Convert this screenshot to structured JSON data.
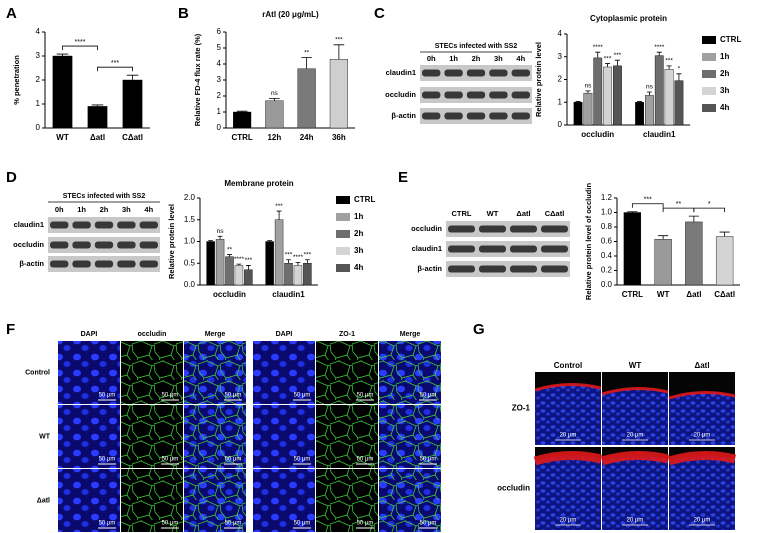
{
  "panel_labels": [
    "A",
    "B",
    "C",
    "D",
    "E",
    "F",
    "G"
  ],
  "chart_data": [
    {
      "type": "bar",
      "ylabel": "% penetration",
      "categories": [
        "WT",
        "Δatl",
        "CΔatl"
      ],
      "values": [
        3.0,
        0.9,
        2.0
      ],
      "errors": [
        0.08,
        0.06,
        0.2
      ],
      "color": "#000000",
      "ylim": [
        0,
        4
      ],
      "yticks": [
        0,
        1,
        2,
        3,
        4
      ],
      "comparisons": [
        {
          "between": [
            "WT",
            "Δatl"
          ],
          "label": "****"
        },
        {
          "between": [
            "Δatl",
            "CΔatl"
          ],
          "label": "***"
        }
      ]
    },
    {
      "type": "bar",
      "title": "rAtl (20 μg/mL)",
      "ylabel": "Relative FD-4 flux rate (%)",
      "categories": [
        "CTRL",
        "12h",
        "24h",
        "36h"
      ],
      "values": [
        1.0,
        1.7,
        3.7,
        4.3
      ],
      "errors": [
        0.05,
        0.15,
        0.7,
        0.9
      ],
      "colors": [
        "#000000",
        "#9a9a9a",
        "#7a7a7a",
        "#cfcfcf"
      ],
      "annotations": [
        null,
        "ns",
        "**",
        "***"
      ],
      "ylim": [
        0,
        6
      ],
      "yticks": [
        0,
        1,
        2,
        3,
        4,
        5,
        6
      ]
    },
    {
      "type": "grouped_bar",
      "title": "Cytoplasmic protein",
      "ylabel": "Relative protein level",
      "categories": [
        "occludin",
        "claudin1"
      ],
      "ylim": [
        0,
        4
      ],
      "yticks": [
        0,
        1,
        2,
        3,
        4
      ],
      "series": [
        {
          "name": "CTRL",
          "color": "#000000",
          "values": [
            1.0,
            1.0
          ],
          "errors": [
            0.03,
            0.03
          ],
          "annotations": [
            null,
            null
          ]
        },
        {
          "name": "1h",
          "color": "#a0a0a0",
          "values": [
            1.4,
            1.3
          ],
          "errors": [
            0.1,
            0.15
          ],
          "annotations": [
            "ns",
            "ns"
          ]
        },
        {
          "name": "2h",
          "color": "#6e6e6e",
          "values": [
            2.95,
            3.05
          ],
          "errors": [
            0.25,
            0.15
          ],
          "annotations": [
            "****",
            "****"
          ]
        },
        {
          "name": "3h",
          "color": "#d4d4d4",
          "values": [
            2.55,
            2.45
          ],
          "errors": [
            0.15,
            0.15
          ],
          "annotations": [
            "***",
            "***"
          ]
        },
        {
          "name": "4h",
          "color": "#555555",
          "values": [
            2.6,
            1.95
          ],
          "errors": [
            0.25,
            0.3
          ],
          "annotations": [
            "***",
            "*"
          ]
        }
      ]
    },
    {
      "type": "grouped_bar",
      "title": "Membrane protein",
      "ylabel": "Relative protein level",
      "categories": [
        "occludin",
        "claudin1"
      ],
      "ylim": [
        0,
        2.0
      ],
      "yticks": [
        {
          "value": 0,
          "label": "0.0"
        },
        0.5,
        {
          "value": 1,
          "label": "1.0"
        },
        1.5,
        {
          "value": 2,
          "label": "2.0"
        }
      ],
      "series": [
        {
          "name": "CTRL",
          "color": "#000000",
          "values": [
            1.0,
            1.0
          ],
          "errors": [
            0.02,
            0.02
          ],
          "annotations": [
            null,
            null
          ]
        },
        {
          "name": "1h",
          "color": "#a0a0a0",
          "values": [
            1.05,
            1.5
          ],
          "errors": [
            0.07,
            0.2
          ],
          "annotations": [
            "ns",
            "***"
          ]
        },
        {
          "name": "2h",
          "color": "#6e6e6e",
          "values": [
            0.65,
            0.5
          ],
          "errors": [
            0.05,
            0.08
          ],
          "annotations": [
            "**",
            "***"
          ]
        },
        {
          "name": "3h",
          "color": "#d4d4d4",
          "values": [
            0.45,
            0.45
          ],
          "errors": [
            0.03,
            0.07
          ],
          "annotations": [
            "****",
            "****"
          ]
        },
        {
          "name": "4h",
          "color": "#555555",
          "values": [
            0.35,
            0.5
          ],
          "errors": [
            0.1,
            0.08
          ],
          "annotations": [
            "***",
            "***"
          ]
        }
      ]
    },
    {
      "type": "bar",
      "ylabel": "Relative protein level of occludin",
      "categories": [
        "CTRL",
        "WT",
        "Δatl",
        "CΔatl"
      ],
      "values": [
        1.0,
        0.63,
        0.87,
        0.67
      ],
      "errors": [
        0.01,
        0.05,
        0.08,
        0.06
      ],
      "colors": [
        "#000000",
        "#9a9a9a",
        "#7a7a7a",
        "#d4d4d4"
      ],
      "ylim": [
        0,
        1.2
      ],
      "yticks": [
        {
          "value": 0,
          "label": "0.0"
        },
        0.2,
        0.4,
        0.6,
        0.8,
        {
          "value": 1,
          "label": "1.0"
        },
        1.2
      ],
      "comparisons": [
        {
          "between": [
            "CTRL",
            "WT"
          ],
          "label": "***"
        },
        {
          "between": [
            "WT",
            "Δatl"
          ],
          "label": "**"
        },
        {
          "between": [
            "Δatl",
            "CΔatl"
          ],
          "label": "*"
        }
      ]
    }
  ],
  "blots": [
    {
      "header": "STECs infected with SS2",
      "lanes": [
        "0h",
        "1h",
        "2h",
        "3h",
        "4h"
      ],
      "rows": [
        "claudin1",
        "occludin",
        "β-actin"
      ]
    },
    {
      "header": "STECs infected with SS2",
      "lanes": [
        "0h",
        "1h",
        "2h",
        "3h",
        "4h"
      ],
      "rows": [
        "claudin1",
        "occludin",
        "β-actin"
      ]
    },
    {
      "lanes": [
        "CTRL",
        "WT",
        "Δatl",
        "CΔatl"
      ],
      "rows": [
        "occludin",
        "claudin1",
        "β-actin"
      ]
    }
  ],
  "panel_F": {
    "columns": [
      "DAPI",
      "occludin",
      "Merge",
      "DAPI",
      "ZO-1",
      "Merge"
    ],
    "rows": [
      "Control",
      "WT",
      "Δatl"
    ],
    "scale_bar": "50 μm"
  },
  "panel_G": {
    "columns": [
      "Control",
      "WT",
      "Δatl"
    ],
    "rows": [
      "ZO-1",
      "occludin"
    ],
    "scale_bar": "20 μm"
  }
}
